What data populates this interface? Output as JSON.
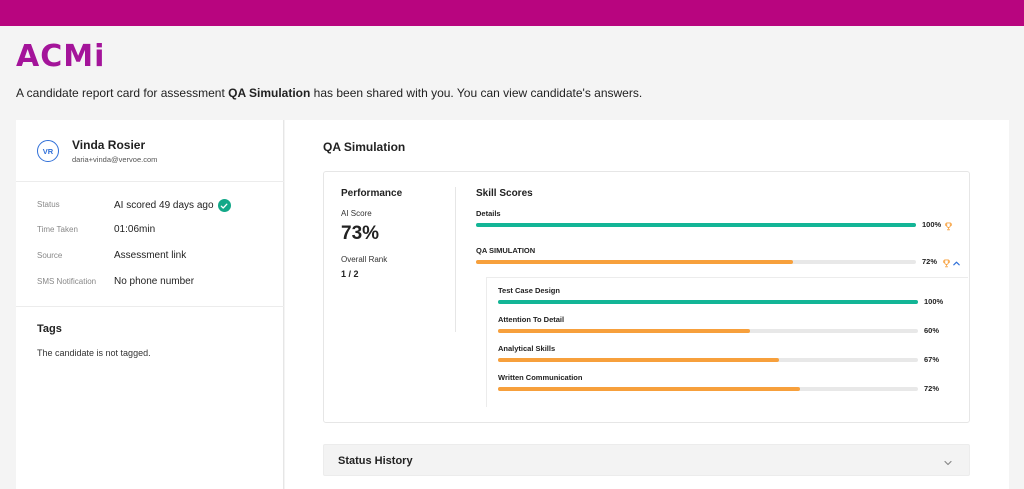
{
  "brand": {
    "logo_text": "ACMi",
    "topbar_color": "#b8057f",
    "logo_color": "#a4149a"
  },
  "intro": {
    "prefix": "A candidate report card for assessment ",
    "assessment": "QA Simulation",
    "suffix": " has been shared with you. You can view candidate's answers."
  },
  "candidate": {
    "initials": "VR",
    "name": "Vinda Rosier",
    "email": "daria+vinda@vervoe.com",
    "meta": [
      {
        "label": "Status",
        "value": "AI scored 49 days ago",
        "icon": "check-circle-icon"
      },
      {
        "label": "Time Taken",
        "value": "01:06min"
      },
      {
        "label": "Source",
        "value": "Assessment link"
      },
      {
        "label": "SMS Notification",
        "value": "No phone number"
      }
    ]
  },
  "tags": {
    "title": "Tags",
    "empty_text": "The candidate is not tagged."
  },
  "main": {
    "title": "QA Simulation",
    "performance": {
      "title": "Performance",
      "ai_score_label": "AI Score",
      "ai_score": "73%",
      "rank_label": "Overall Rank",
      "rank": "1 / 2"
    },
    "skills_title": "Skill Scores",
    "skills": [
      {
        "label": "Details",
        "value": 100,
        "pct_text": "100%",
        "color": "#13b596",
        "trophy": true,
        "bold": false
      },
      {
        "label": "QA SIMULATION",
        "value": 72,
        "pct_text": "72%",
        "color": "#f7a03c",
        "trophy": true,
        "chevron": true,
        "bold": false
      }
    ],
    "sub_skills": [
      {
        "label": "Test Case Design",
        "value": 100,
        "pct_text": "100%",
        "color": "#13b596"
      },
      {
        "label": "Attention To Detail",
        "value": 60,
        "pct_text": "60%",
        "color": "#f7a03c"
      },
      {
        "label": "Analytical Skills",
        "value": 67,
        "pct_text": "67%",
        "color": "#f7a03c"
      },
      {
        "label": "Written Communication",
        "value": 72,
        "pct_text": "72%",
        "color": "#f7a03c"
      }
    ],
    "status_history": {
      "title": "Status History"
    }
  }
}
